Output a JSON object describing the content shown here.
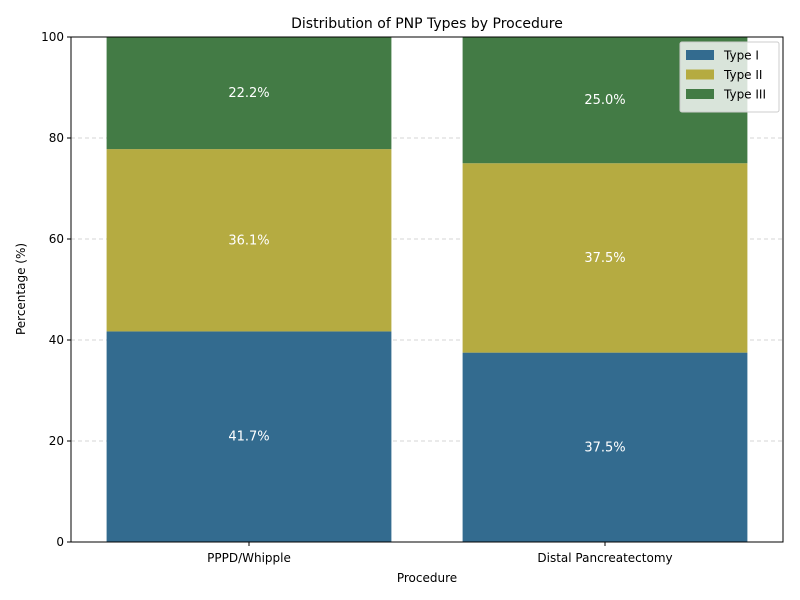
{
  "chart_data": {
    "type": "bar",
    "stacked": true,
    "title": "Distribution of PNP Types by Procedure",
    "xlabel": "Procedure",
    "ylabel": "Percentage (%)",
    "categories": [
      "PPPD/Whipple",
      "Distal Pancreatectomy"
    ],
    "ylim": [
      0,
      100
    ],
    "yticks": [
      0,
      20,
      40,
      60,
      80,
      100
    ],
    "grid": "y-dashed",
    "legend_position": "top-right",
    "series": [
      {
        "name": "Type I",
        "color": "#336b8f",
        "values": [
          41.7,
          37.5
        ],
        "labels": [
          "41.7%",
          "37.5%"
        ]
      },
      {
        "name": "Type II",
        "color": "#b5ab41",
        "values": [
          36.1,
          37.5
        ],
        "labels": [
          "36.1%",
          "37.5%"
        ]
      },
      {
        "name": "Type III",
        "color": "#437b45",
        "values": [
          22.2,
          25.0
        ],
        "labels": [
          "22.2%",
          "25.0%"
        ]
      }
    ]
  }
}
